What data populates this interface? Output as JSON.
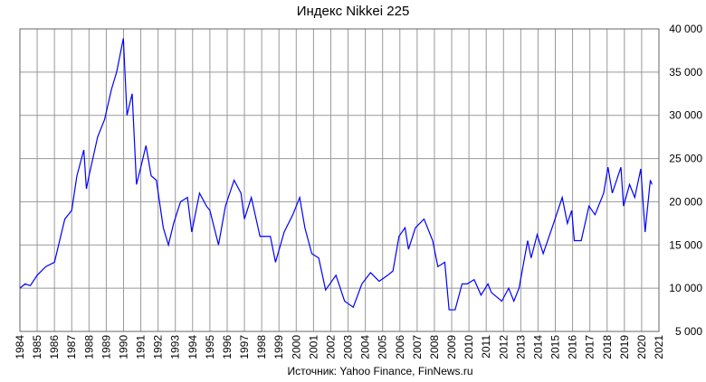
{
  "chart_data": {
    "type": "line",
    "title": "Индекс Nikkei 225",
    "source": "Источник: Yahoo Finance, FinNews.ru",
    "x": [
      1984.0,
      1984.3,
      1984.6,
      1985.0,
      1985.5,
      1986.0,
      1986.3,
      1986.6,
      1987.0,
      1987.3,
      1987.7,
      1987.85,
      1988.0,
      1988.5,
      1988.9,
      1989.3,
      1989.6,
      1989.99,
      1990.2,
      1990.5,
      1990.75,
      1991.0,
      1991.3,
      1991.6,
      1991.9,
      1992.3,
      1992.6,
      1992.9,
      1993.3,
      1993.7,
      1993.95,
      1994.4,
      1994.8,
      1995.0,
      1995.5,
      1995.9,
      1996.4,
      1996.8,
      1997.0,
      1997.4,
      1997.9,
      1998.5,
      1998.8,
      1999.3,
      1999.8,
      2000.2,
      2000.5,
      2000.9,
      2001.3,
      2001.7,
      2002.3,
      2002.8,
      2003.3,
      2003.8,
      2004.3,
      2004.8,
      2005.3,
      2005.6,
      2005.95,
      2006.3,
      2006.5,
      2006.9,
      2007.4,
      2007.9,
      2008.2,
      2008.6,
      2008.85,
      2009.2,
      2009.6,
      2009.9,
      2010.3,
      2010.7,
      2011.1,
      2011.3,
      2011.6,
      2011.9,
      2012.3,
      2012.6,
      2012.9,
      2013.4,
      2013.6,
      2013.95,
      2014.3,
      2014.9,
      2015.4,
      2015.7,
      2015.95,
      2016.1,
      2016.5,
      2016.95,
      2017.3,
      2017.8,
      2018.05,
      2018.3,
      2018.8,
      2018.95,
      2019.3,
      2019.6,
      2019.95,
      2020.2,
      2020.5,
      2020.6
    ],
    "series": [
      {
        "name": "Nikkei 225",
        "color": "#0000ff",
        "values": [
          10000,
          10500,
          10300,
          11500,
          12500,
          13000,
          15500,
          18000,
          19000,
          23000,
          26000,
          21500,
          23000,
          27500,
          29500,
          33000,
          35000,
          38900,
          30000,
          32500,
          22000,
          24000,
          26500,
          23000,
          22500,
          17000,
          15000,
          17500,
          20000,
          20500,
          16500,
          21000,
          19500,
          19000,
          15000,
          19500,
          22500,
          21000,
          18000,
          20500,
          16000,
          16000,
          13000,
          16500,
          18500,
          20500,
          17000,
          14000,
          13500,
          9800,
          11500,
          8500,
          7800,
          10500,
          11800,
          10800,
          11500,
          12000,
          16000,
          17000,
          14500,
          17000,
          18000,
          15500,
          12500,
          13000,
          7500,
          7500,
          10500,
          10500,
          11000,
          9200,
          10500,
          9500,
          9000,
          8500,
          10000,
          8500,
          10000,
          15500,
          13500,
          16200,
          14000,
          17500,
          20500,
          17500,
          19000,
          15500,
          15500,
          19500,
          18500,
          21000,
          24000,
          21000,
          24000,
          19500,
          22000,
          20500,
          23800,
          16500,
          22500,
          22000
        ]
      }
    ],
    "xlim": [
      1984,
      2021
    ],
    "xticks": [
      1984,
      1985,
      1986,
      1987,
      1988,
      1989,
      1990,
      1991,
      1992,
      1993,
      1994,
      1995,
      1996,
      1997,
      1998,
      1999,
      2000,
      2001,
      2002,
      2003,
      2004,
      2005,
      2006,
      2007,
      2008,
      2009,
      2010,
      2011,
      2012,
      2013,
      2014,
      2015,
      2016,
      2017,
      2018,
      2019,
      2020,
      2021
    ],
    "ylim": [
      5000,
      40000
    ],
    "yticks": [
      {
        "value": 5000,
        "label": "5 000"
      },
      {
        "value": 10000,
        "label": "10 000"
      },
      {
        "value": 15000,
        "label": "15 000"
      },
      {
        "value": 20000,
        "label": "20 000"
      },
      {
        "value": 25000,
        "label": "25 000"
      },
      {
        "value": 30000,
        "label": "30 000"
      },
      {
        "value": 35000,
        "label": "35 000"
      },
      {
        "value": 40000,
        "label": "40 000"
      }
    ],
    "grid": true
  }
}
